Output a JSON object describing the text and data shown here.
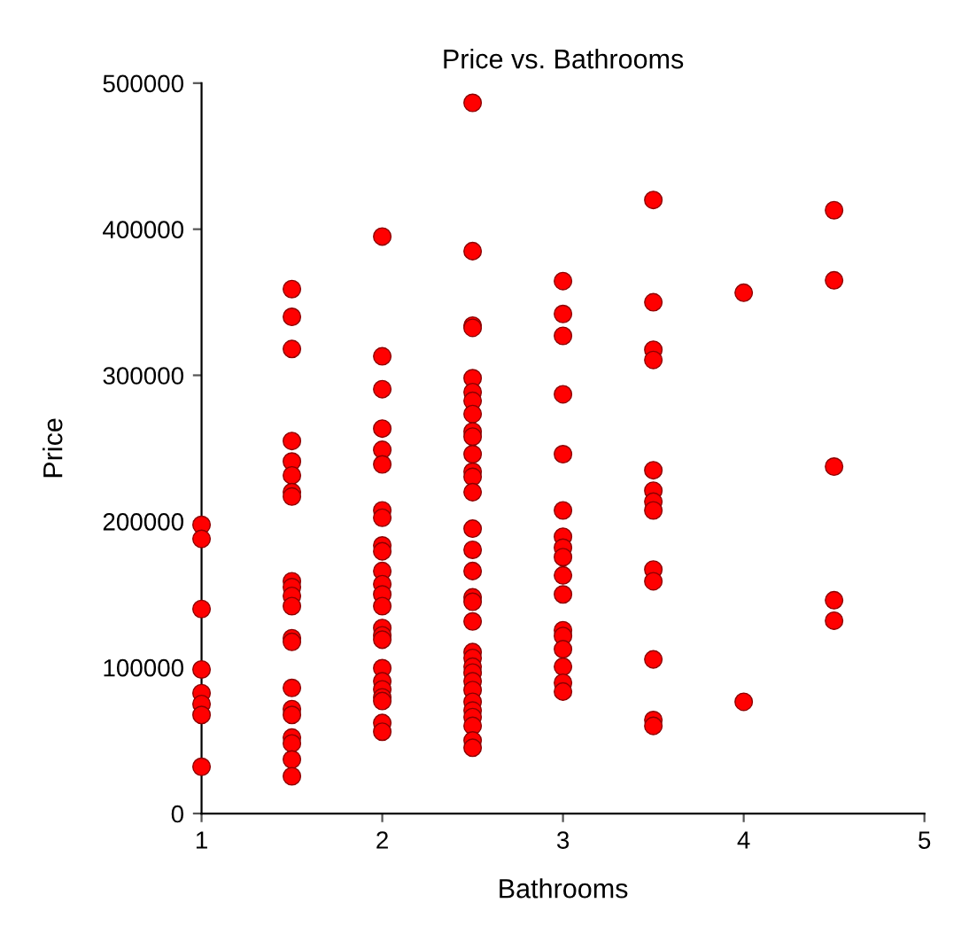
{
  "chart_data": {
    "type": "scatter",
    "title": "Price vs. Bathrooms",
    "xlabel": "Bathrooms",
    "ylabel": "Price",
    "series": [
      {
        "color": "#ff0000",
        "x": [
          1,
          1,
          1,
          1,
          1,
          1,
          1,
          1,
          1.5,
          1.5,
          1.5,
          1.5,
          1.5,
          1.5,
          1.5,
          1.5,
          1.5,
          1.5,
          1.5,
          1.5,
          1.5,
          1.5,
          1.5,
          1.5,
          1.5,
          1.5,
          1.5,
          1.5,
          1.5,
          2,
          2,
          2,
          2,
          2,
          2,
          2,
          2,
          2,
          2,
          2,
          2,
          2,
          2,
          2,
          2,
          2,
          2,
          2,
          2,
          2,
          2,
          2,
          2,
          2.5,
          2.5,
          2.5,
          2.5,
          2.5,
          2.5,
          2.5,
          2.5,
          2.5,
          2.5,
          2.5,
          2.5,
          2.5,
          2.5,
          2.5,
          2.5,
          2.5,
          2.5,
          2.5,
          2.5,
          2.5,
          2.5,
          2.5,
          2.5,
          2.5,
          2.5,
          2.5,
          2.5,
          2.5,
          2.5,
          2.5,
          2.5,
          3,
          3,
          3,
          3,
          3,
          3,
          3,
          3,
          3,
          3,
          3,
          3,
          3,
          3,
          3,
          3,
          3,
          3.5,
          3.5,
          3.5,
          3.5,
          3.5,
          3.5,
          3.5,
          3.5,
          3.5,
          3.5,
          3.5,
          3.5,
          3.5,
          4,
          4,
          4.5,
          4.5,
          4.5,
          4.5,
          4.5
        ],
        "values": [
          197600,
          188000,
          140000,
          98600,
          82400,
          75000,
          67500,
          32000,
          359000,
          340000,
          318000,
          255000,
          241000,
          231500,
          220000,
          217000,
          159000,
          155000,
          149000,
          142000,
          120000,
          117500,
          86000,
          71500,
          67500,
          52000,
          48000,
          37000,
          25500,
          395000,
          313000,
          290500,
          263500,
          249000,
          239000,
          207500,
          202500,
          183500,
          179500,
          166000,
          157000,
          150000,
          142000,
          127000,
          122000,
          119000,
          99500,
          90500,
          85000,
          79500,
          77000,
          62000,
          56000,
          486500,
          385000,
          334000,
          332500,
          298000,
          288500,
          282500,
          273500,
          261500,
          258000,
          246000,
          234000,
          230500,
          220000,
          195000,
          180500,
          166000,
          148000,
          145000,
          131500,
          110500,
          106500,
          100500,
          96500,
          90500,
          84500,
          76500,
          70500,
          66000,
          60000,
          50000,
          45000,
          364500,
          342000,
          327000,
          287000,
          246000,
          207500,
          189500,
          182000,
          175500,
          163000,
          150000,
          125500,
          121500,
          112500,
          100500,
          89500,
          83500,
          420000,
          350000,
          317500,
          310500,
          235000,
          221000,
          213500,
          207500,
          167000,
          159000,
          105500,
          64000,
          60000,
          356500,
          76500,
          413000,
          365000,
          237500,
          146000,
          132000
        ]
      }
    ],
    "xlim": [
      1,
      5
    ],
    "xticks": [
      1,
      2,
      3,
      4,
      5
    ],
    "ylim": [
      0,
      500000
    ],
    "yticks": [
      0,
      100000,
      200000,
      300000,
      400000,
      500000
    ],
    "marker": "circle",
    "grid": false
  }
}
